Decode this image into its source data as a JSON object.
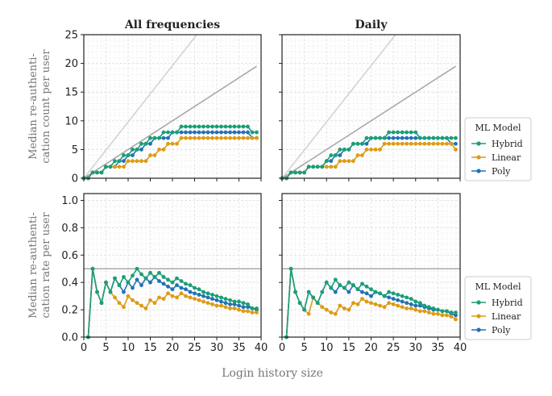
{
  "colors": {
    "Hybrid": "#1a9e77",
    "Linear": "#de9b16",
    "Poly": "#2171b5",
    "ref_light": "#d3d3d3",
    "ref_dark": "#a9a9a9",
    "hline": "#a9a9a9"
  },
  "figure": {
    "xlabel": "Login history size"
  },
  "legends": [
    {
      "title": "ML Model",
      "entries": [
        "Hybrid",
        "Linear",
        "Poly"
      ]
    },
    {
      "title": "ML Model",
      "entries": [
        "Hybrid",
        "Linear",
        "Poly"
      ]
    }
  ],
  "chart_data": [
    {
      "type": "line",
      "panel": "top-left",
      "title": "All frequencies",
      "ylabel": [
        "Median re-authenti-",
        "cation count per user"
      ],
      "xlim": [
        0,
        40
      ],
      "ylim": [
        0,
        25
      ],
      "xticks": [
        0,
        5,
        10,
        15,
        20,
        25,
        30,
        35,
        40
      ],
      "xtick_labels": [],
      "yticks": [
        0,
        5,
        10,
        15,
        20,
        25
      ],
      "ytick_labels": [
        "0",
        "5",
        "10",
        "15",
        "20",
        "25"
      ],
      "grid": true,
      "reference_lines": [
        {
          "x": [
            0,
            25.5
          ],
          "y": [
            0,
            25
          ],
          "style": "light"
        },
        {
          "x": [
            0,
            39
          ],
          "y": [
            0,
            19.5
          ],
          "style": "dark"
        }
      ],
      "x": [
        0,
        1,
        2,
        3,
        4,
        5,
        6,
        7,
        8,
        9,
        10,
        11,
        12,
        13,
        14,
        15,
        16,
        17,
        18,
        19,
        20,
        21,
        22,
        23,
        24,
        25,
        26,
        27,
        28,
        29,
        30,
        31,
        32,
        33,
        34,
        35,
        36,
        37,
        38,
        39
      ],
      "series": [
        {
          "name": "Hybrid",
          "values": [
            0,
            0,
            1,
            1,
            1,
            2,
            2,
            3,
            3,
            4,
            4,
            5,
            5,
            6,
            6,
            7,
            7,
            7,
            8,
            8,
            8,
            8,
            9,
            9,
            9,
            9,
            9,
            9,
            9,
            9,
            9,
            9,
            9,
            9,
            9,
            9,
            9,
            9,
            8,
            8
          ]
        },
        {
          "name": "Linear",
          "values": [
            0,
            0,
            1,
            1,
            1,
            2,
            2,
            2,
            2,
            2,
            3,
            3,
            3,
            3,
            3,
            4,
            4,
            5,
            5,
            6,
            6,
            6,
            7,
            7,
            7,
            7,
            7,
            7,
            7,
            7,
            7,
            7,
            7,
            7,
            7,
            7,
            7,
            7,
            7,
            7
          ]
        },
        {
          "name": "Poly",
          "values": [
            0,
            0,
            1,
            1,
            1,
            2,
            2,
            2,
            3,
            3,
            4,
            4,
            5,
            5,
            6,
            6,
            7,
            7,
            7,
            7,
            8,
            8,
            8,
            8,
            8,
            8,
            8,
            8,
            8,
            8,
            8,
            8,
            8,
            8,
            8,
            8,
            8,
            8,
            7,
            7
          ]
        }
      ]
    },
    {
      "type": "line",
      "panel": "top-right",
      "title": "Daily",
      "xlim": [
        0,
        40
      ],
      "ylim": [
        0,
        25
      ],
      "xticks": [
        0,
        5,
        10,
        15,
        20,
        25,
        30,
        35,
        40
      ],
      "xtick_labels": [],
      "yticks": [
        0,
        5,
        10,
        15,
        20,
        25
      ],
      "ytick_labels": [],
      "grid": true,
      "reference_lines": [
        {
          "x": [
            0,
            25.5
          ],
          "y": [
            0,
            25
          ],
          "style": "light"
        },
        {
          "x": [
            0,
            39
          ],
          "y": [
            0,
            19.5
          ],
          "style": "dark"
        }
      ],
      "x": [
        0,
        1,
        2,
        3,
        4,
        5,
        6,
        7,
        8,
        9,
        10,
        11,
        12,
        13,
        14,
        15,
        16,
        17,
        18,
        19,
        20,
        21,
        22,
        23,
        24,
        25,
        26,
        27,
        28,
        29,
        30,
        31,
        32,
        33,
        34,
        35,
        36,
        37,
        38,
        39
      ],
      "series": [
        {
          "name": "Hybrid",
          "values": [
            0,
            0,
            1,
            1,
            1,
            1,
            2,
            2,
            2,
            2,
            3,
            4,
            4,
            5,
            5,
            5,
            6,
            6,
            6,
            7,
            7,
            7,
            7,
            7,
            8,
            8,
            8,
            8,
            8,
            8,
            8,
            7,
            7,
            7,
            7,
            7,
            7,
            7,
            7,
            7
          ]
        },
        {
          "name": "Linear",
          "values": [
            0,
            0,
            1,
            1,
            1,
            1,
            2,
            2,
            2,
            2,
            2,
            2,
            2,
            3,
            3,
            3,
            3,
            4,
            4,
            5,
            5,
            5,
            5,
            6,
            6,
            6,
            6,
            6,
            6,
            6,
            6,
            6,
            6,
            6,
            6,
            6,
            6,
            6,
            6,
            5
          ]
        },
        {
          "name": "Poly",
          "values": [
            0,
            0,
            1,
            1,
            1,
            1,
            2,
            2,
            2,
            2,
            3,
            3,
            4,
            4,
            5,
            5,
            6,
            6,
            6,
            6,
            7,
            7,
            7,
            7,
            7,
            7,
            7,
            7,
            7,
            7,
            7,
            7,
            7,
            7,
            7,
            7,
            7,
            7,
            6,
            6
          ]
        }
      ]
    },
    {
      "type": "line",
      "panel": "bottom-left",
      "ylabel": [
        "Median re-authenti-",
        "cation rate per user"
      ],
      "xlim": [
        0,
        40
      ],
      "ylim": [
        0,
        1.05
      ],
      "xticks": [
        0,
        5,
        10,
        15,
        20,
        25,
        30,
        35,
        40
      ],
      "xtick_labels": [
        "0",
        "5",
        "10",
        "15",
        "20",
        "25",
        "30",
        "35",
        "40"
      ],
      "yticks": [
        0,
        0.2,
        0.4,
        0.6,
        0.8,
        1.0
      ],
      "ytick_labels": [
        "0.0",
        "0.2",
        "0.4",
        "0.6",
        "0.8",
        "1.0"
      ],
      "grid": true,
      "reference_lines": [
        {
          "y_const": 0.5,
          "style": "hline"
        }
      ],
      "x": [
        1,
        2,
        3,
        4,
        5,
        6,
        7,
        8,
        9,
        10,
        11,
        12,
        13,
        14,
        15,
        16,
        17,
        18,
        19,
        20,
        21,
        22,
        23,
        24,
        25,
        26,
        27,
        28,
        29,
        30,
        31,
        32,
        33,
        34,
        35,
        36,
        37,
        38,
        39
      ],
      "series": [
        {
          "name": "Hybrid",
          "values": [
            0,
            0.5,
            0.33,
            0.25,
            0.4,
            0.33,
            0.43,
            0.38,
            0.44,
            0.4,
            0.45,
            0.5,
            0.46,
            0.43,
            0.47,
            0.44,
            0.47,
            0.44,
            0.42,
            0.4,
            0.43,
            0.41,
            0.39,
            0.38,
            0.36,
            0.35,
            0.33,
            0.32,
            0.31,
            0.3,
            0.29,
            0.28,
            0.27,
            0.26,
            0.26,
            0.25,
            0.24,
            0.21,
            0.21
          ]
        },
        {
          "name": "Linear",
          "values": [
            0,
            0.5,
            0.33,
            0.25,
            0.4,
            0.33,
            0.29,
            0.25,
            0.22,
            0.3,
            0.27,
            0.25,
            0.23,
            0.21,
            0.27,
            0.25,
            0.29,
            0.28,
            0.32,
            0.3,
            0.29,
            0.32,
            0.3,
            0.29,
            0.28,
            0.27,
            0.26,
            0.25,
            0.24,
            0.23,
            0.23,
            0.22,
            0.21,
            0.21,
            0.2,
            0.19,
            0.19,
            0.18,
            0.18
          ]
        },
        {
          "name": "Poly",
          "values": [
            0,
            0.5,
            0.33,
            0.25,
            0.4,
            0.33,
            0.43,
            0.38,
            0.33,
            0.4,
            0.36,
            0.42,
            0.38,
            0.43,
            0.4,
            0.44,
            0.41,
            0.39,
            0.37,
            0.35,
            0.38,
            0.36,
            0.35,
            0.33,
            0.32,
            0.31,
            0.3,
            0.29,
            0.28,
            0.27,
            0.26,
            0.25,
            0.24,
            0.24,
            0.23,
            0.22,
            0.22,
            0.21,
            0.2
          ]
        }
      ]
    },
    {
      "type": "line",
      "panel": "bottom-right",
      "xlim": [
        0,
        40
      ],
      "ylim": [
        0,
        1.05
      ],
      "xticks": [
        0,
        5,
        10,
        15,
        20,
        25,
        30,
        35,
        40
      ],
      "xtick_labels": [
        "0",
        "5",
        "10",
        "15",
        "20",
        "25",
        "30",
        "35",
        "40"
      ],
      "yticks": [
        0,
        0.2,
        0.4,
        0.6,
        0.8,
        1.0
      ],
      "ytick_labels": [],
      "grid": true,
      "reference_lines": [
        {
          "y_const": 0.5,
          "style": "hline"
        }
      ],
      "x": [
        1,
        2,
        3,
        4,
        5,
        6,
        7,
        8,
        9,
        10,
        11,
        12,
        13,
        14,
        15,
        16,
        17,
        18,
        19,
        20,
        21,
        22,
        23,
        24,
        25,
        26,
        27,
        28,
        29,
        30,
        31,
        32,
        33,
        34,
        35,
        36,
        37,
        38,
        39
      ],
      "series": [
        {
          "name": "Hybrid",
          "values": [
            0,
            0.5,
            0.33,
            0.25,
            0.2,
            0.33,
            0.29,
            0.25,
            0.33,
            0.4,
            0.36,
            0.42,
            0.38,
            0.36,
            0.4,
            0.38,
            0.35,
            0.39,
            0.37,
            0.35,
            0.33,
            0.32,
            0.3,
            0.33,
            0.32,
            0.31,
            0.3,
            0.29,
            0.28,
            0.26,
            0.25,
            0.23,
            0.22,
            0.21,
            0.2,
            0.19,
            0.19,
            0.18,
            0.18
          ]
        },
        {
          "name": "Linear",
          "values": [
            0,
            0.5,
            0.33,
            0.25,
            0.2,
            0.17,
            0.29,
            0.25,
            0.22,
            0.2,
            0.18,
            0.17,
            0.23,
            0.21,
            0.2,
            0.25,
            0.24,
            0.28,
            0.26,
            0.25,
            0.24,
            0.23,
            0.22,
            0.25,
            0.24,
            0.23,
            0.22,
            0.21,
            0.21,
            0.2,
            0.19,
            0.19,
            0.18,
            0.17,
            0.17,
            0.16,
            0.16,
            0.15,
            0.13
          ]
        },
        {
          "name": "Poly",
          "values": [
            0,
            0.5,
            0.33,
            0.25,
            0.2,
            0.33,
            0.29,
            0.25,
            0.33,
            0.4,
            0.36,
            0.33,
            0.38,
            0.36,
            0.33,
            0.38,
            0.35,
            0.33,
            0.32,
            0.3,
            0.33,
            0.32,
            0.3,
            0.29,
            0.28,
            0.27,
            0.26,
            0.25,
            0.24,
            0.23,
            0.23,
            0.22,
            0.21,
            0.2,
            0.2,
            0.19,
            0.19,
            0.17,
            0.16
          ]
        }
      ]
    }
  ]
}
